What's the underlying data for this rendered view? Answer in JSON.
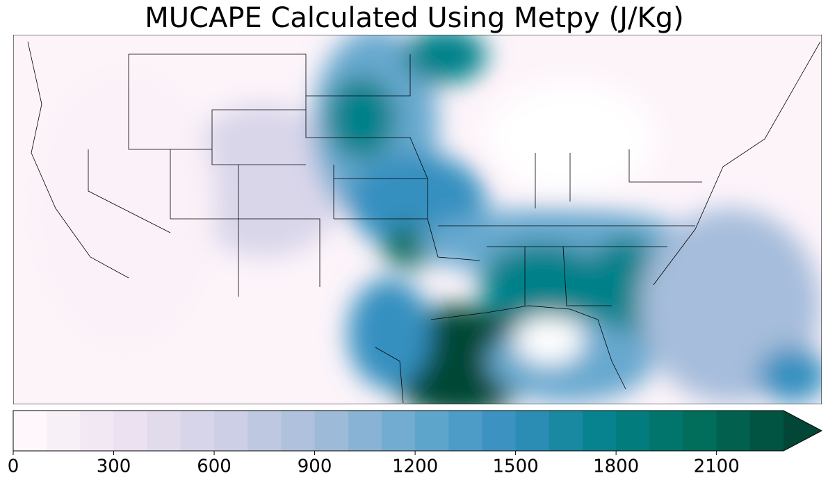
{
  "chart_data": {
    "type": "colorbar-map",
    "title": "MUCAPE Calculated Using Metpy (J/Kg)",
    "levels": [
      0,
      100,
      200,
      300,
      400,
      500,
      600,
      700,
      800,
      900,
      1000,
      1100,
      1200,
      1300,
      1400,
      1500,
      1600,
      1700,
      1800,
      1900,
      2000,
      2100,
      2200,
      2300
    ],
    "extend": "max",
    "colormap": [
      "#fff7fb",
      "#ece2f0",
      "#d0d1e6",
      "#a6bddb",
      "#67a9cf",
      "#3690c0",
      "#02818a",
      "#016c59",
      "#014636"
    ],
    "xlim": [
      0,
      2300
    ],
    "xticks": [
      0,
      300,
      600,
      900,
      1200,
      1500,
      1800,
      2100
    ]
  }
}
